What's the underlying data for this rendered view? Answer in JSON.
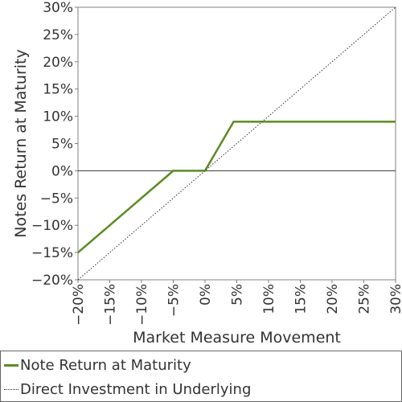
{
  "chart_data": {
    "type": "line",
    "xlabel": "Market Measure Movement",
    "ylabel": "Notes Return at Maturity",
    "xlim": [
      -20,
      30
    ],
    "ylim": [
      -20,
      30
    ],
    "x_ticks": [
      "−20%",
      "−15%",
      "−10%",
      "−5%",
      "0%",
      "5%",
      "10%",
      "15%",
      "20%",
      "25%",
      "30%"
    ],
    "y_ticks": [
      "−20%",
      "−15%",
      "−10%",
      "−5%",
      "0%",
      "5%",
      "10%",
      "15%",
      "20%",
      "25%",
      "30%"
    ],
    "grid": false,
    "legend_position": "bottom",
    "series": [
      {
        "name": "Note Return at Maturity",
        "color": "#5b8c21",
        "style": "solid",
        "x": [
          -20,
          -5,
          0,
          4.5,
          30
        ],
        "y": [
          -15,
          0,
          0,
          9,
          9
        ]
      },
      {
        "name": "Direct Investment in Underlying",
        "color": "#333333",
        "style": "dotted",
        "x": [
          -20,
          30
        ],
        "y": [
          -20,
          30
        ]
      }
    ]
  }
}
